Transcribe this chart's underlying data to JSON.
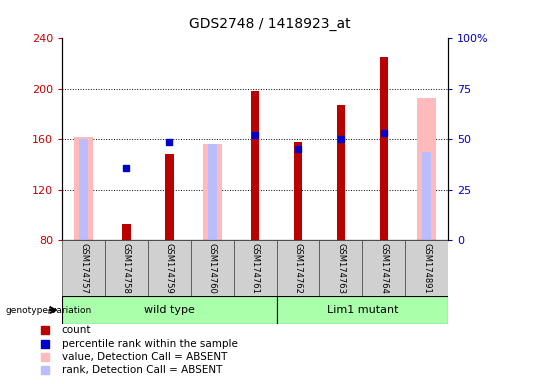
{
  "title": "GDS2748 / 1418923_at",
  "samples": [
    "GSM174757",
    "GSM174758",
    "GSM174759",
    "GSM174760",
    "GSM174761",
    "GSM174762",
    "GSM174763",
    "GSM174764",
    "GSM174891"
  ],
  "count": [
    null,
    93,
    148,
    null,
    198,
    158,
    187,
    225,
    null
  ],
  "percentile_rank": [
    null,
    137,
    158,
    null,
    163,
    152,
    160,
    165,
    null
  ],
  "absent_value": [
    162,
    null,
    null,
    156,
    null,
    null,
    null,
    null,
    193
  ],
  "absent_rank": [
    160,
    null,
    null,
    156,
    null,
    null,
    null,
    null,
    150
  ],
  "ylim_left": [
    80,
    240
  ],
  "ylim_right": [
    0,
    100
  ],
  "yticks_left": [
    80,
    120,
    160,
    200,
    240
  ],
  "yticks_right": [
    0,
    25,
    50,
    75,
    100
  ],
  "bar_bottom": 80,
  "count_color": "#bb0000",
  "percentile_color": "#0000cc",
  "absent_value_color": "#ffbbbb",
  "absent_rank_color": "#bbbbff",
  "wt_color": "#aaffaa",
  "lm_color": "#aaffaa",
  "grid_color": "black",
  "left_tick_color": "#cc0000",
  "right_tick_color": "#0000cc",
  "bar_width": 0.45,
  "title_fontsize": 10,
  "tick_fontsize": 8,
  "sample_fontsize": 6,
  "group_fontsize": 8,
  "legend_fontsize": 7.5,
  "wt_indices": [
    0,
    1,
    2,
    3,
    4
  ],
  "lm_indices": [
    5,
    6,
    7,
    8
  ],
  "wt_label": "wild type",
  "lm_label": "Lim1 mutant",
  "genotype_label": "genotype/variation"
}
